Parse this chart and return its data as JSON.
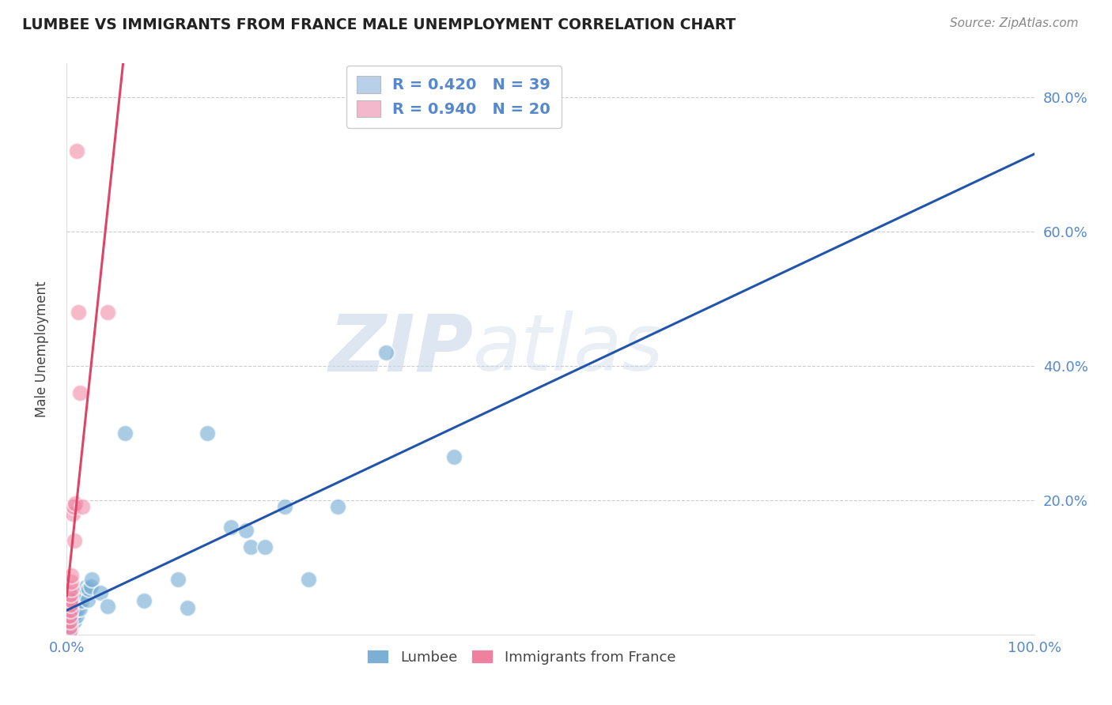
{
  "title": "LUMBEE VS IMMIGRANTS FROM FRANCE MALE UNEMPLOYMENT CORRELATION CHART",
  "source": "Source: ZipAtlas.com",
  "ylabel": "Male Unemployment",
  "xlim": [
    0.0,
    1.0
  ],
  "ylim": [
    0.0,
    0.85
  ],
  "xticks": [
    0.0,
    0.2,
    0.4,
    0.6,
    0.8,
    1.0
  ],
  "xticklabels": [
    "0.0%",
    "",
    "",
    "",
    "",
    "100.0%"
  ],
  "yticks": [
    0.0,
    0.2,
    0.4,
    0.6,
    0.8
  ],
  "yticklabels": [
    "",
    "20.0%",
    "40.0%",
    "60.0%",
    "80.0%"
  ],
  "legend1_label": "R = 0.420   N = 39",
  "legend2_label": "R = 0.940   N = 20",
  "legend1_color": "#b8d0e8",
  "legend2_color": "#f4b8cc",
  "watermark_zip": "ZIP",
  "watermark_atlas": "atlas",
  "background_color": "#ffffff",
  "grid_color": "#cccccc",
  "lumbee_color": "#7bafd4",
  "france_color": "#f080a0",
  "lumbee_line_color": "#2255aa",
  "france_line_color": "#dd4466",
  "tick_color": "#5588cc",
  "lumbee_points": [
    [
      0.003,
      0.005
    ],
    [
      0.003,
      0.015
    ],
    [
      0.004,
      0.022
    ],
    [
      0.004,
      0.03
    ],
    [
      0.005,
      0.01
    ],
    [
      0.005,
      0.018
    ],
    [
      0.006,
      0.025
    ],
    [
      0.006,
      0.035
    ],
    [
      0.008,
      0.02
    ],
    [
      0.008,
      0.03
    ],
    [
      0.009,
      0.04
    ],
    [
      0.01,
      0.028
    ],
    [
      0.011,
      0.038
    ],
    [
      0.012,
      0.048
    ],
    [
      0.012,
      0.058
    ],
    [
      0.014,
      0.038
    ],
    [
      0.015,
      0.05
    ],
    [
      0.018,
      0.06
    ],
    [
      0.019,
      0.07
    ],
    [
      0.022,
      0.052
    ],
    [
      0.023,
      0.068
    ],
    [
      0.025,
      0.072
    ],
    [
      0.026,
      0.082
    ],
    [
      0.035,
      0.062
    ],
    [
      0.042,
      0.042
    ],
    [
      0.06,
      0.3
    ],
    [
      0.08,
      0.05
    ],
    [
      0.115,
      0.082
    ],
    [
      0.125,
      0.04
    ],
    [
      0.145,
      0.3
    ],
    [
      0.17,
      0.16
    ],
    [
      0.185,
      0.155
    ],
    [
      0.19,
      0.13
    ],
    [
      0.205,
      0.13
    ],
    [
      0.225,
      0.19
    ],
    [
      0.25,
      0.082
    ],
    [
      0.28,
      0.19
    ],
    [
      0.33,
      0.42
    ],
    [
      0.4,
      0.265
    ]
  ],
  "france_points": [
    [
      0.003,
      0.005
    ],
    [
      0.003,
      0.012
    ],
    [
      0.003,
      0.02
    ],
    [
      0.003,
      0.028
    ],
    [
      0.004,
      0.036
    ],
    [
      0.004,
      0.044
    ],
    [
      0.004,
      0.052
    ],
    [
      0.004,
      0.06
    ],
    [
      0.005,
      0.068
    ],
    [
      0.005,
      0.078
    ],
    [
      0.005,
      0.088
    ],
    [
      0.006,
      0.18
    ],
    [
      0.007,
      0.19
    ],
    [
      0.008,
      0.14
    ],
    [
      0.009,
      0.195
    ],
    [
      0.01,
      0.72
    ],
    [
      0.012,
      0.48
    ],
    [
      0.014,
      0.36
    ],
    [
      0.016,
      0.19
    ],
    [
      0.042,
      0.48
    ]
  ]
}
